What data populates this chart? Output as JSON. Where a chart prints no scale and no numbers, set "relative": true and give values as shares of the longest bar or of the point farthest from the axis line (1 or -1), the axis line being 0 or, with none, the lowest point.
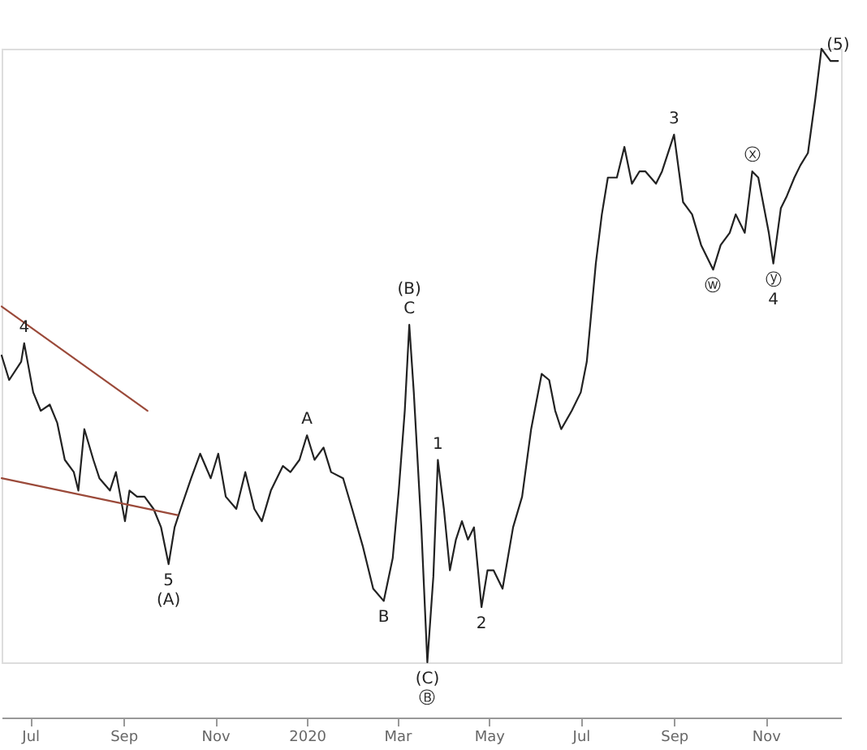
{
  "chart_data": {
    "type": "line",
    "relative": true,
    "grid": false,
    "line_style": "solid",
    "marker": "none",
    "xlim": [
      "2019-06-12",
      "2020-12-21"
    ],
    "xticks": [
      {
        "value": "2019-07-01",
        "label": "Jul"
      },
      {
        "value": "2019-09-01",
        "label": "Sep"
      },
      {
        "value": "2019-11-01",
        "label": "Nov"
      },
      {
        "value": "2020-01-01",
        "label": "2020"
      },
      {
        "value": "2020-03-01",
        "label": "Mar"
      },
      {
        "value": "2020-05-01",
        "label": "May"
      },
      {
        "value": "2020-07-01",
        "label": "Jul"
      },
      {
        "value": "2020-09-01",
        "label": "Sep"
      },
      {
        "value": "2020-11-01",
        "label": "Nov"
      }
    ],
    "series": [
      {
        "color": "#222222",
        "x": [
          "2019-06-12",
          "2019-06-17",
          "2019-06-25",
          "2019-06-27",
          "2019-07-03",
          "2019-07-08",
          "2019-07-14",
          "2019-07-19",
          "2019-07-24",
          "2019-07-30",
          "2019-08-02",
          "2019-08-06",
          "2019-08-12",
          "2019-08-16",
          "2019-08-23",
          "2019-08-27",
          "2019-09-02",
          "2019-09-05",
          "2019-09-10",
          "2019-09-15",
          "2019-09-21",
          "2019-09-26",
          "2019-10-01",
          "2019-10-05",
          "2019-10-09",
          "2019-10-16",
          "2019-10-22",
          "2019-10-29",
          "2019-11-03",
          "2019-11-08",
          "2019-11-15",
          "2019-11-21",
          "2019-11-27",
          "2019-12-02",
          "2019-12-08",
          "2019-12-16",
          "2019-12-21",
          "2019-12-27",
          "2020-01-01",
          "2020-01-06",
          "2020-01-12",
          "2020-01-17",
          "2020-01-25",
          "2020-01-31",
          "2020-02-07",
          "2020-02-14",
          "2020-02-21",
          "2020-02-27",
          "2020-03-02",
          "2020-03-06",
          "2020-03-09",
          "2020-03-12",
          "2020-03-17",
          "2020-03-21",
          "2020-03-25",
          "2020-03-28",
          "2020-04-01",
          "2020-04-05",
          "2020-04-09",
          "2020-04-13",
          "2020-04-17",
          "2020-04-21",
          "2020-04-26",
          "2020-04-30",
          "2020-05-04",
          "2020-05-10",
          "2020-05-17",
          "2020-05-23",
          "2020-05-29",
          "2020-06-05",
          "2020-06-10",
          "2020-06-14",
          "2020-06-18",
          "2020-06-25",
          "2020-07-01",
          "2020-07-05",
          "2020-07-11",
          "2020-07-15",
          "2020-07-19",
          "2020-07-25",
          "2020-07-30",
          "2020-08-04",
          "2020-08-09",
          "2020-08-13",
          "2020-08-20",
          "2020-08-24",
          "2020-09-01",
          "2020-09-07",
          "2020-09-13",
          "2020-09-19",
          "2020-09-27",
          "2020-10-02",
          "2020-10-08",
          "2020-10-12",
          "2020-10-18",
          "2020-10-23",
          "2020-10-27",
          "2020-11-03",
          "2020-11-06",
          "2020-11-11",
          "2020-11-15",
          "2020-11-20",
          "2020-11-24",
          "2020-11-29",
          "2020-12-04",
          "2020-12-08",
          "2020-12-14",
          "2020-12-19"
        ],
        "values": [
          0.5,
          0.46,
          0.49,
          0.52,
          0.44,
          0.41,
          0.42,
          0.39,
          0.33,
          0.31,
          0.28,
          0.38,
          0.33,
          0.3,
          0.28,
          0.31,
          0.23,
          0.28,
          0.27,
          0.27,
          0.25,
          0.22,
          0.16,
          0.22,
          0.25,
          0.3,
          0.34,
          0.3,
          0.34,
          0.27,
          0.25,
          0.31,
          0.25,
          0.23,
          0.28,
          0.32,
          0.31,
          0.33,
          0.37,
          0.33,
          0.35,
          0.31,
          0.3,
          0.25,
          0.19,
          0.12,
          0.1,
          0.17,
          0.28,
          0.41,
          0.55,
          0.44,
          0.22,
          0.0,
          0.14,
          0.33,
          0.25,
          0.15,
          0.2,
          0.23,
          0.2,
          0.22,
          0.09,
          0.15,
          0.15,
          0.12,
          0.22,
          0.27,
          0.38,
          0.47,
          0.46,
          0.41,
          0.38,
          0.41,
          0.44,
          0.49,
          0.65,
          0.73,
          0.79,
          0.79,
          0.84,
          0.78,
          0.8,
          0.8,
          0.78,
          0.8,
          0.86,
          0.75,
          0.73,
          0.68,
          0.64,
          0.68,
          0.7,
          0.73,
          0.7,
          0.8,
          0.79,
          0.7,
          0.65,
          0.74,
          0.76,
          0.79,
          0.81,
          0.83,
          0.92,
          1.0,
          0.98,
          0.98
        ]
      },
      {
        "type": "line",
        "color": "#9b4a3a",
        "x": [
          "2019-06-12",
          "2019-09-17"
        ],
        "values": [
          0.58,
          0.41
        ]
      },
      {
        "type": "line",
        "color": "#9b4a3a",
        "x": [
          "2019-06-12",
          "2019-10-07"
        ],
        "values": [
          0.3,
          0.24
        ]
      }
    ],
    "annotations": [
      {
        "text": "4",
        "x": "2019-06-27",
        "y": 0.52
      },
      {
        "text": "5",
        "x": "2019-10-01",
        "y": 0.16
      },
      {
        "text": "(A)",
        "x": "2019-10-01",
        "y": 0.16
      },
      {
        "text": "A",
        "x": "2020-01-01",
        "y": 0.37
      },
      {
        "text": "B",
        "x": "2020-02-21",
        "y": 0.1
      },
      {
        "text": "(B)",
        "x": "2020-03-09",
        "y": 0.55
      },
      {
        "text": "C",
        "x": "2020-03-09",
        "y": 0.55
      },
      {
        "text": "1",
        "x": "2020-03-28",
        "y": 0.33
      },
      {
        "text": "(C)",
        "x": "2020-03-21",
        "y": 0.0
      },
      {
        "text": "Ⓑ",
        "x": "2020-03-21",
        "y": 0.0
      },
      {
        "text": "2",
        "x": "2020-04-26",
        "y": 0.09
      },
      {
        "text": "3",
        "x": "2020-09-01",
        "y": 0.86
      },
      {
        "text": "ⓦ",
        "x": "2020-09-27",
        "y": 0.64
      },
      {
        "text": "ⓧ",
        "x": "2020-10-23",
        "y": 0.8
      },
      {
        "text": "ⓨ",
        "x": "2020-11-06",
        "y": 0.65
      },
      {
        "text": "4",
        "x": "2020-11-06",
        "y": 0.65
      },
      {
        "text": "(5)",
        "x": "2020-12-19",
        "y": 0.98
      }
    ]
  }
}
